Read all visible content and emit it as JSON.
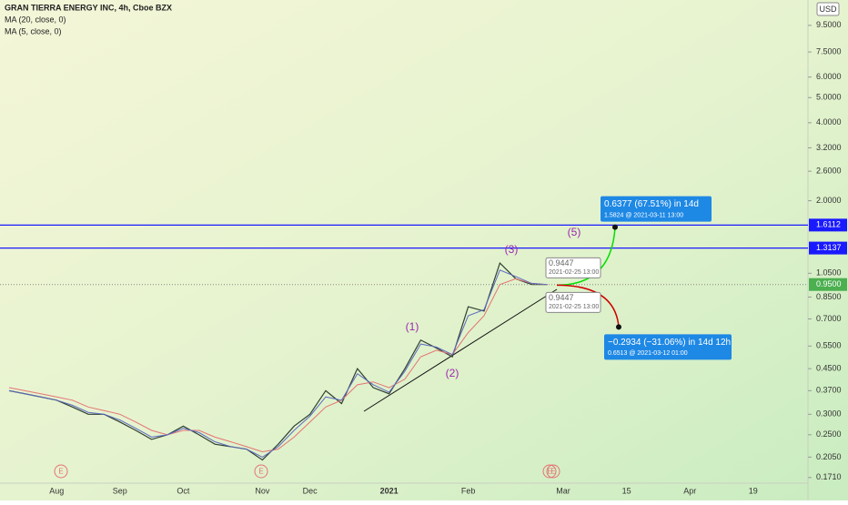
{
  "chart_data": {
    "type": "line",
    "title": "GRAN TIERRA ENERGY INC, 4h, Cboe BZX",
    "currency": "USD",
    "log_scale": true,
    "categories": [
      null,
      null,
      null,
      "Aug",
      null,
      null,
      null,
      "Sep",
      null,
      null,
      null,
      "Oct",
      null,
      null,
      null,
      null,
      "Nov",
      null,
      null,
      "Dec",
      null,
      null,
      null,
      null,
      "2021",
      null,
      null,
      null,
      null,
      "Feb",
      null,
      null,
      null,
      null,
      null,
      "Mar",
      null,
      null,
      null,
      "15",
      null,
      null,
      null,
      "Apr",
      null,
      null,
      null,
      "19",
      null,
      null
    ],
    "series": [
      {
        "color": "#2f4030",
        "values": [
          0.37,
          0.36,
          0.35,
          0.34,
          0.32,
          0.3,
          0.3,
          0.28,
          0.26,
          0.24,
          0.25,
          0.27,
          0.25,
          0.23,
          0.225,
          0.22,
          0.2,
          0.23,
          0.27,
          0.3,
          0.37,
          0.33,
          0.45,
          0.38,
          0.36,
          0.45,
          0.58,
          0.54,
          0.5,
          0.78,
          0.75,
          1.15,
          1.0,
          0.95,
          0.95,
          null,
          null,
          null,
          null,
          null,
          null,
          null,
          null,
          null,
          null,
          null,
          null,
          null,
          null,
          null
        ]
      },
      {
        "name": "MA (20, close, 0)",
        "color": "#e57373",
        "values": [
          0.38,
          0.37,
          0.36,
          0.35,
          0.34,
          0.32,
          0.31,
          0.3,
          0.28,
          0.26,
          0.25,
          0.26,
          0.26,
          0.245,
          0.235,
          0.225,
          0.215,
          0.22,
          0.245,
          0.28,
          0.32,
          0.34,
          0.39,
          0.4,
          0.38,
          0.41,
          0.5,
          0.53,
          0.51,
          0.62,
          0.72,
          0.95,
          1.0,
          0.96,
          0.95,
          null,
          null,
          null,
          null,
          null,
          null,
          null,
          null,
          null,
          null,
          null,
          null,
          null,
          null,
          null
        ]
      },
      {
        "name": "MA (5, close, 0)",
        "color": "#5c6bc0",
        "values": [
          0.37,
          0.36,
          0.35,
          0.34,
          0.325,
          0.305,
          0.3,
          0.285,
          0.265,
          0.245,
          0.25,
          0.265,
          0.255,
          0.235,
          0.225,
          0.22,
          0.205,
          0.225,
          0.26,
          0.295,
          0.35,
          0.34,
          0.43,
          0.39,
          0.365,
          0.44,
          0.56,
          0.545,
          0.51,
          0.72,
          0.76,
          1.08,
          1.02,
          0.96,
          0.95,
          null,
          null,
          null,
          null,
          null,
          null,
          null,
          null,
          null,
          null,
          null,
          null,
          null,
          null,
          null
        ]
      }
    ],
    "ylim": [
      0.164,
      11.9
    ],
    "yticks": [
      {
        "value": 9.5,
        "label": "9.5000"
      },
      {
        "value": 7.5,
        "label": "7.5000"
      },
      {
        "value": 6,
        "label": "6.0000"
      },
      {
        "value": 5,
        "label": "5.0000"
      },
      {
        "value": 4,
        "label": "4.0000"
      },
      {
        "value": 3.2,
        "label": "3.2000"
      },
      {
        "value": 2.6,
        "label": "2.6000"
      },
      {
        "value": 2,
        "label": "2.0000"
      },
      {
        "value": 1.05,
        "label": "1.0500"
      },
      {
        "value": 0.85,
        "label": "0.8500"
      },
      {
        "value": 0.7,
        "label": "0.7000"
      },
      {
        "value": 0.55,
        "label": "0.5500"
      },
      {
        "value": 0.45,
        "label": "0.4500"
      },
      {
        "value": 0.37,
        "label": "0.3700"
      },
      {
        "value": 0.3,
        "label": "0.3000"
      },
      {
        "value": 0.25,
        "label": "0.2500"
      },
      {
        "value": 0.205,
        "label": "0.2050"
      },
      {
        "value": 0.171,
        "label": "0.1710"
      }
    ],
    "hlines": [
      {
        "value": 1.6112,
        "color": "#1a1aff"
      },
      {
        "value": 1.3137,
        "color": "#1a1aff"
      }
    ],
    "last_price": {
      "value": 0.95,
      "label": "0.9500",
      "color": "#4caf50"
    },
    "wave_labels": [
      "(1)",
      "(2)",
      "(3)",
      "(5)"
    ],
    "event_labels": [
      "E",
      "E",
      "E",
      "E"
    ],
    "forecasts": [
      {
        "start": 0.9447,
        "start_label": "2021-02-25 13:00",
        "target": 1.5824,
        "change_label": "0.6377 (67.51%) in 14d",
        "target_label": "1.5824 @ 2021-03-11  13:00",
        "color": "#00e000"
      },
      {
        "start": 0.9447,
        "start_label": "2021-02-25 13:00",
        "target": 0.6513,
        "change_label": "−0.2934 (−31.06%) in 14d 12h",
        "target_label": "0.6513 @ 2021-03-12  01:00",
        "color": "#d00000"
      }
    ]
  }
}
